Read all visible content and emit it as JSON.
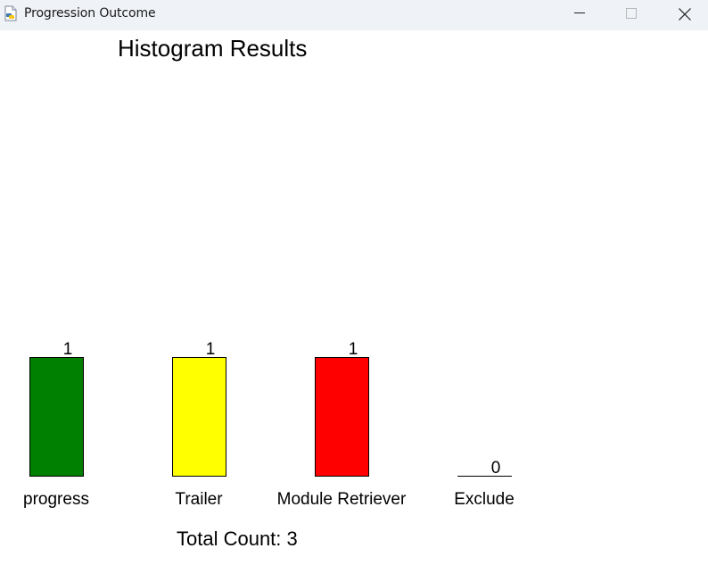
{
  "window": {
    "title": "Progression Outcome",
    "icon": "python-feather-icon"
  },
  "title_buttons": {
    "minimize": "minimize-icon",
    "maximize": "maximize-icon",
    "close": "close-icon"
  },
  "chart_data": {
    "type": "bar",
    "title": "Histogram Results",
    "categories": [
      "progress",
      "Trailer",
      "Module Retriever",
      "Exclude"
    ],
    "values": [
      1,
      1,
      1,
      0
    ],
    "colors": [
      "#008000",
      "#ffff00",
      "#ff0000",
      "#ffffff"
    ],
    "xlabel": "",
    "ylabel": "",
    "grid": false
  },
  "footer": {
    "total_label": "Total Count: 3"
  }
}
